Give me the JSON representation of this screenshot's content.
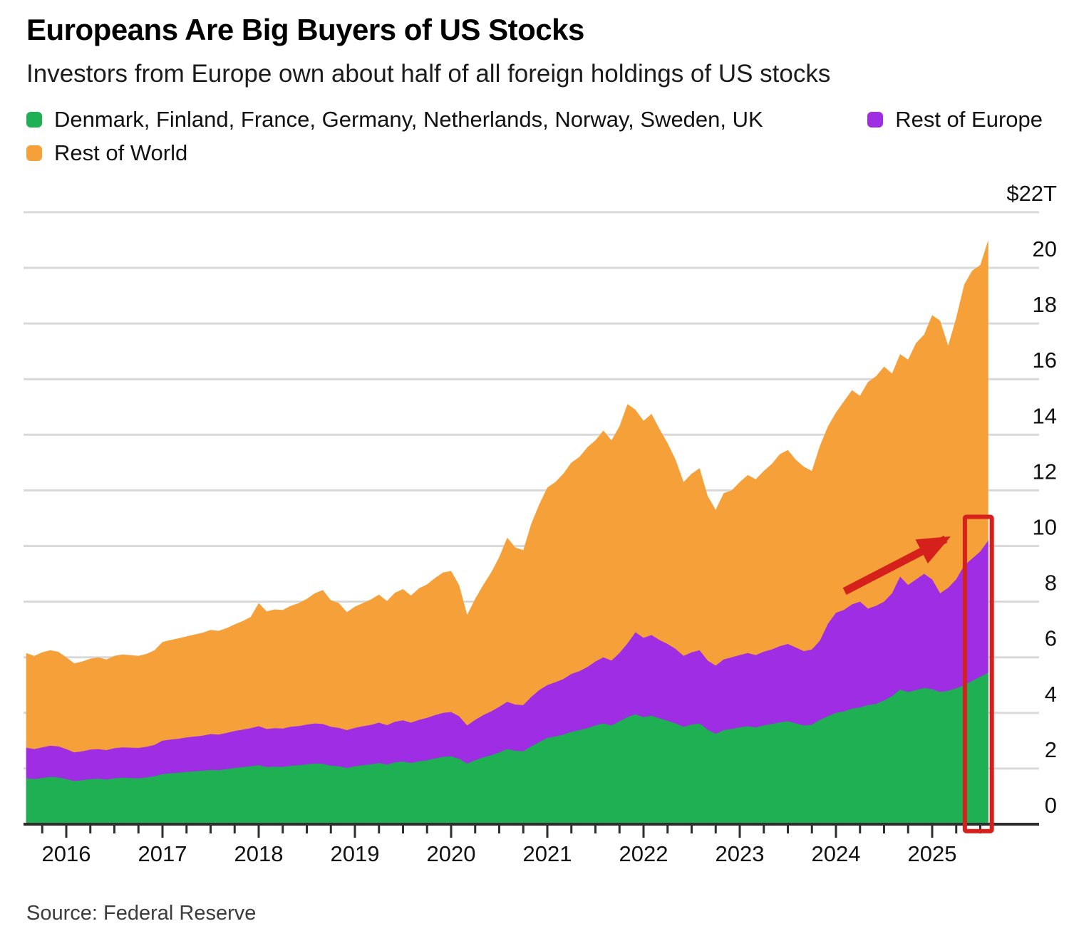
{
  "header": {
    "title": "Europeans Are Big Buyers of US Stocks",
    "subtitle": "Investors from Europe own about half of all foreign holdings of US stocks"
  },
  "legend": [
    {
      "label": "Denmark, Finland, France, Germany, Netherlands, Norway, Sweden, UK",
      "color": "#1eb052"
    },
    {
      "label": "Rest of Europe",
      "color": "#9e2de3"
    },
    {
      "label": "Rest of World",
      "color": "#f5a038"
    }
  ],
  "source": "Source: Federal Reserve",
  "colors": {
    "green": "#1eb052",
    "purple": "#9e2de3",
    "orange": "#f5a038",
    "annotation_red": "#d6201c",
    "gridline": "#d9d9d9",
    "axis": "#2e2e2e"
  },
  "chart_data": {
    "type": "area",
    "stacked": true,
    "title": "Europeans Are Big Buyers of US Stocks",
    "subtitle": "Investors from Europe own about half of all foreign holdings of US stocks",
    "x_start": 2015.5833,
    "x_step": 0.0833333,
    "x_tick_years": [
      "2016",
      "2017",
      "2018",
      "2019",
      "2020",
      "2021",
      "2022",
      "2023",
      "2024",
      "2025"
    ],
    "y_ticks": [
      0,
      2,
      4,
      6,
      8,
      10,
      12,
      14,
      16,
      18,
      20
    ],
    "y_axis_top_label": "$22T",
    "y_axis_top_value": 22,
    "ylim": [
      0,
      22
    ],
    "grid": true,
    "legend_position": "top",
    "units": "trillion USD",
    "series": [
      {
        "name": "Denmark, Finland, France, Germany, Netherlands, Norway, Sweden, UK",
        "color": "#1eb052",
        "values": [
          1.65,
          1.62,
          1.66,
          1.7,
          1.68,
          1.62,
          1.55,
          1.58,
          1.62,
          1.63,
          1.6,
          1.65,
          1.67,
          1.66,
          1.65,
          1.68,
          1.72,
          1.8,
          1.83,
          1.85,
          1.88,
          1.9,
          1.92,
          1.95,
          1.94,
          1.98,
          2.02,
          2.05,
          2.08,
          2.12,
          2.05,
          2.07,
          2.06,
          2.1,
          2.12,
          2.15,
          2.18,
          2.17,
          2.1,
          2.08,
          2.02,
          2.08,
          2.12,
          2.15,
          2.2,
          2.14,
          2.22,
          2.25,
          2.2,
          2.26,
          2.3,
          2.36,
          2.42,
          2.44,
          2.35,
          2.18,
          2.3,
          2.4,
          2.48,
          2.58,
          2.7,
          2.64,
          2.62,
          2.8,
          2.95,
          3.1,
          3.15,
          3.22,
          3.32,
          3.38,
          3.45,
          3.55,
          3.62,
          3.55,
          3.7,
          3.85,
          3.95,
          3.85,
          3.9,
          3.8,
          3.72,
          3.62,
          3.5,
          3.58,
          3.62,
          3.4,
          3.25,
          3.38,
          3.42,
          3.48,
          3.52,
          3.48,
          3.55,
          3.6,
          3.66,
          3.7,
          3.62,
          3.55,
          3.58,
          3.75,
          3.88,
          4.0,
          4.05,
          4.15,
          4.2,
          4.28,
          4.32,
          4.45,
          4.6,
          4.84,
          4.75,
          4.82,
          4.9,
          4.85,
          4.75,
          4.8,
          4.88,
          5.0,
          5.15,
          5.3,
          5.45
        ]
      },
      {
        "name": "Rest of Europe",
        "color": "#9e2de3",
        "values": [
          1.1,
          1.08,
          1.1,
          1.12,
          1.12,
          1.08,
          1.03,
          1.04,
          1.06,
          1.07,
          1.06,
          1.08,
          1.09,
          1.09,
          1.09,
          1.1,
          1.13,
          1.2,
          1.21,
          1.22,
          1.24,
          1.25,
          1.26,
          1.29,
          1.28,
          1.3,
          1.33,
          1.35,
          1.37,
          1.4,
          1.37,
          1.38,
          1.38,
          1.4,
          1.41,
          1.43,
          1.44,
          1.43,
          1.4,
          1.38,
          1.36,
          1.38,
          1.4,
          1.42,
          1.45,
          1.42,
          1.46,
          1.48,
          1.45,
          1.49,
          1.52,
          1.56,
          1.58,
          1.59,
          1.53,
          1.37,
          1.45,
          1.52,
          1.57,
          1.64,
          1.7,
          1.66,
          1.66,
          1.78,
          1.87,
          1.9,
          1.95,
          2.0,
          2.08,
          2.12,
          2.2,
          2.3,
          2.38,
          2.33,
          2.45,
          2.65,
          2.95,
          2.85,
          2.9,
          2.82,
          2.76,
          2.68,
          2.55,
          2.6,
          2.63,
          2.48,
          2.45,
          2.54,
          2.58,
          2.6,
          2.63,
          2.6,
          2.65,
          2.68,
          2.74,
          2.78,
          2.73,
          2.67,
          2.7,
          2.85,
          3.32,
          3.6,
          3.65,
          3.75,
          3.8,
          3.47,
          3.53,
          3.55,
          3.7,
          4.06,
          3.85,
          3.98,
          4.1,
          3.95,
          3.55,
          3.7,
          3.92,
          4.3,
          4.4,
          4.5,
          4.75
        ]
      },
      {
        "name": "Rest of World",
        "color": "#f5a038",
        "values": [
          3.4,
          3.35,
          3.42,
          3.43,
          3.4,
          3.3,
          3.2,
          3.23,
          3.27,
          3.3,
          3.26,
          3.32,
          3.34,
          3.33,
          3.31,
          3.34,
          3.4,
          3.55,
          3.58,
          3.61,
          3.63,
          3.67,
          3.7,
          3.74,
          3.73,
          3.77,
          3.83,
          3.9,
          4.0,
          4.43,
          4.23,
          4.27,
          4.26,
          4.35,
          4.42,
          4.52,
          4.68,
          4.82,
          4.55,
          4.49,
          4.24,
          4.36,
          4.43,
          4.51,
          4.6,
          4.46,
          4.64,
          4.72,
          4.57,
          4.73,
          4.8,
          4.93,
          5.05,
          5.07,
          4.72,
          3.97,
          4.35,
          4.68,
          5.0,
          5.38,
          5.9,
          5.65,
          5.57,
          6.22,
          6.68,
          7.1,
          7.2,
          7.38,
          7.6,
          7.7,
          7.9,
          7.95,
          8.15,
          7.92,
          8.15,
          8.6,
          8.0,
          7.8,
          7.95,
          7.58,
          7.22,
          6.8,
          6.25,
          6.42,
          6.55,
          5.92,
          5.6,
          5.98,
          6.0,
          6.22,
          6.4,
          6.32,
          6.5,
          6.67,
          6.9,
          6.97,
          6.75,
          6.63,
          6.42,
          7.0,
          7.1,
          7.2,
          7.5,
          7.7,
          7.4,
          8.15,
          8.25,
          8.45,
          7.9,
          8.0,
          8.1,
          8.5,
          8.6,
          9.5,
          9.8,
          8.7,
          9.4,
          10.1,
          10.35,
          10.3,
          10.8
        ]
      }
    ],
    "annotations": {
      "arrow": {
        "x1": 2024.09,
        "v1": 8.37,
        "x2": 2025.14,
        "v2": 10.25,
        "color": "#d6201c"
      },
      "highlight_box": {
        "x1": 2025.34,
        "x2": 2025.62,
        "v_top": 11.05,
        "v_bottom": -0.25,
        "color": "#d6201c"
      }
    }
  }
}
